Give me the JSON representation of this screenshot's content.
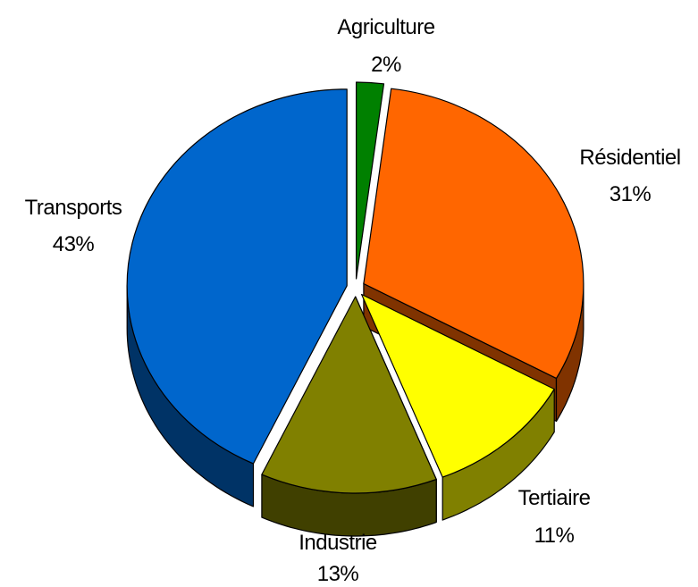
{
  "chart_data": {
    "type": "pie",
    "style": "3d-exploded",
    "title": "",
    "slices": [
      {
        "label": "Agriculture",
        "percent_label": "2%",
        "value": 2,
        "color": "#008000",
        "side_color": "#004d00"
      },
      {
        "label": "Résidentiel",
        "percent_label": "31%",
        "value": 31,
        "color": "#ff6600",
        "side_color": "#803300"
      },
      {
        "label": "Tertiaire",
        "percent_label": "11%",
        "value": 11,
        "color": "#ffff00",
        "side_color": "#808000"
      },
      {
        "label": "Industrie",
        "percent_label": "13%",
        "value": 13,
        "color": "#808000",
        "side_color": "#404000"
      },
      {
        "label": "Transports",
        "percent_label": "43%",
        "value": 43,
        "color": "#0066cc",
        "side_color": "#003366"
      }
    ]
  }
}
